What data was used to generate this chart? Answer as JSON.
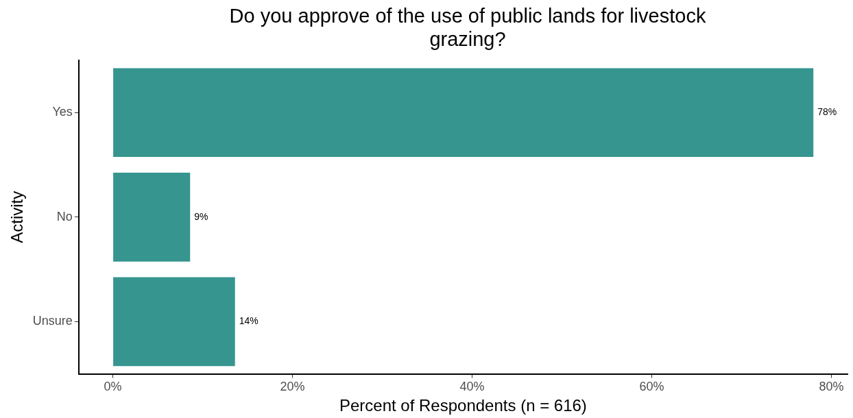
{
  "chart_data": {
    "type": "bar",
    "orientation": "horizontal",
    "title": "Do you approve of the use of public lands for livestock grazing?",
    "xlabel": "Percent of Respondents (n = 616)",
    "ylabel": "Activity",
    "categories": [
      "Yes",
      "No",
      "Unsure"
    ],
    "values": [
      78,
      8.6,
      13.6
    ],
    "color": "#36958f",
    "value_labels": [
      "78%",
      "9%",
      "14%"
    ],
    "xlim": [
      -3.8,
      81.8
    ],
    "xticks": [
      {
        "value": 0,
        "label": "0%"
      },
      {
        "value": 20,
        "label": "20%"
      },
      {
        "value": 40,
        "label": "40%"
      },
      {
        "value": 60,
        "label": "60%"
      },
      {
        "value": 80,
        "label": "80%"
      }
    ],
    "grid": false
  }
}
